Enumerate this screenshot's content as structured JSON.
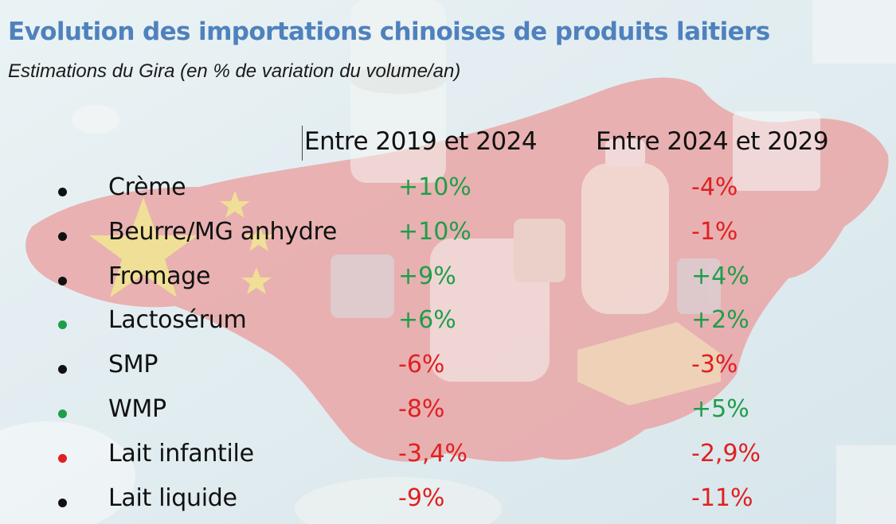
{
  "title": "Evolution des importations chinoises de produits laitiers",
  "subtitle": "Estimations du Gira (en % de variation du volume/an)",
  "colors": {
    "title": "#4f81bd",
    "positive": "#1f9e4a",
    "negative": "#e02020",
    "bullet_black": "#111111",
    "bullet_green": "#1f9e4a",
    "bullet_red": "#e02020"
  },
  "chart_data": {
    "type": "table",
    "title": "Evolution des importations chinoises de produits laitiers",
    "subtitle": "Estimations du Gira (en % de variation du volume/an)",
    "columns": [
      "Entre 2019 et 2024",
      "Entre 2024 et 2029"
    ],
    "rows": [
      {
        "label": "Crème",
        "bullet": "black",
        "values": [
          "+10%",
          "-4%"
        ]
      },
      {
        "label": "Beurre/MG anhydre",
        "bullet": "black",
        "values": [
          "+10%",
          "-1%"
        ]
      },
      {
        "label": "Fromage",
        "bullet": "black",
        "values": [
          "+9%",
          "+4%"
        ]
      },
      {
        "label": "Lactosérum",
        "bullet": "green",
        "values": [
          "+6%",
          "+2%"
        ]
      },
      {
        "label": "SMP",
        "bullet": "black",
        "values": [
          "-6%",
          "-3%"
        ]
      },
      {
        "label": "WMP",
        "bullet": "green",
        "values": [
          "-8%",
          "+5%"
        ]
      },
      {
        "label": "Lait infantile",
        "bullet": "red",
        "values": [
          "-3,4%",
          "-2,9%"
        ]
      },
      {
        "label": "Lait liquide",
        "bullet": "black",
        "values": [
          "-9%",
          "-11%"
        ]
      }
    ]
  }
}
